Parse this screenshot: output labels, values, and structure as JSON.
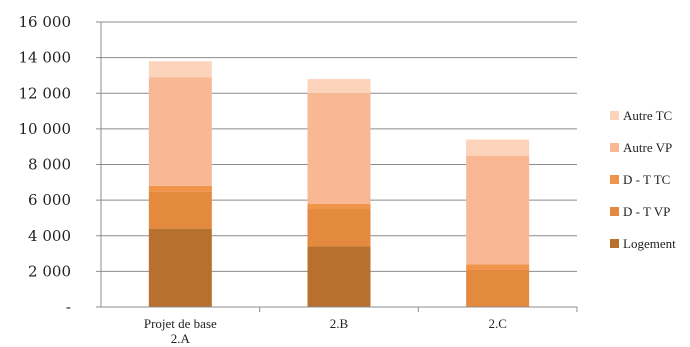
{
  "chart_data": {
    "type": "bar",
    "stacked": true,
    "categories": [
      "Projet de base 2.A",
      "2.B",
      "2.C"
    ],
    "category_label_lines": [
      [
        "Projet de base",
        "2.A"
      ],
      [
        "2.B"
      ],
      [
        "2.C"
      ]
    ],
    "series": [
      {
        "name": "Logement",
        "color": "#b8702f",
        "values": [
          4400,
          3400,
          0
        ]
      },
      {
        "name": "D - T VP",
        "color": "#e38a3e",
        "values": [
          2100,
          2100,
          2100
        ]
      },
      {
        "name": "D - T TC",
        "color": "#f0944a",
        "values": [
          300,
          300,
          300
        ]
      },
      {
        "name": "Autre VP",
        "color": "#f9b893",
        "values": [
          6100,
          6200,
          6100
        ]
      },
      {
        "name": "Autre TC",
        "color": "#fcd3bb",
        "values": [
          900,
          800,
          900
        ]
      }
    ],
    "legend_order": [
      "Autre TC",
      "Autre VP",
      "D - T TC",
      "D - T VP",
      "Logement"
    ],
    "yticks": [
      {
        "value": 0,
        "label": "-"
      },
      {
        "value": 2000,
        "label": "2 000"
      },
      {
        "value": 4000,
        "label": "4 000"
      },
      {
        "value": 6000,
        "label": "6 000"
      },
      {
        "value": 8000,
        "label": "8 000"
      },
      {
        "value": 10000,
        "label": "10 000"
      },
      {
        "value": 12000,
        "label": "12 000"
      },
      {
        "value": 14000,
        "label": "14 000"
      },
      {
        "value": 16000,
        "label": "16 000"
      }
    ],
    "ylim": [
      0,
      16000
    ],
    "grid": true,
    "legend_position": "right",
    "title": "",
    "xlabel": "",
    "ylabel": ""
  }
}
